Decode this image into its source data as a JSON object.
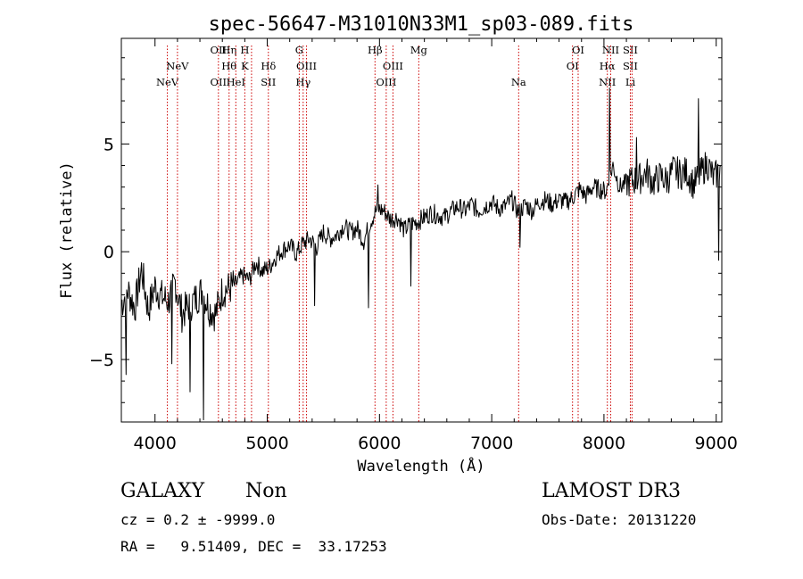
{
  "chart_data": {
    "type": "line",
    "title": "spec-56647-M31010N33M1_sp03-089.fits",
    "xlabel": "Wavelength (Å)",
    "ylabel": "Flux (relative)",
    "xlim": [
      3700,
      9050
    ],
    "ylim": [
      -7.9,
      9.9
    ],
    "xticks": [
      4000,
      5000,
      6000,
      7000,
      8000,
      9000
    ],
    "yticks": [
      -5,
      0,
      5
    ],
    "grid": false,
    "line_color": "#000000",
    "marker_color": "#cc0000",
    "series": [
      {
        "name": "flux",
        "x": [
          3700,
          3760,
          3820,
          3880,
          3940,
          4000,
          4060,
          4120,
          4180,
          4240,
          4300,
          4360,
          4420,
          4480,
          4540,
          4600,
          4660,
          4720,
          4780,
          4840,
          4900,
          4960,
          5020,
          5080,
          5140,
          5200,
          5260,
          5320,
          5380,
          5440,
          5500,
          5560,
          5620,
          5680,
          5740,
          5800,
          5860,
          5920,
          5980,
          6040,
          6100,
          6160,
          6220,
          6280,
          6340,
          6400,
          6460,
          6520,
          6580,
          6640,
          6700,
          6760,
          6820,
          6880,
          6940,
          7000,
          7060,
          7120,
          7180,
          7240,
          7300,
          7360,
          7420,
          7480,
          7540,
          7600,
          7660,
          7720,
          7780,
          7840,
          7900,
          7960,
          8020,
          8080,
          8140,
          8200,
          8260,
          8320,
          8380,
          8440,
          8500,
          8560,
          8620,
          8680,
          8740,
          8800,
          8860,
          8920,
          8980,
          9040
        ],
        "y": [
          -2.4,
          -1.8,
          -2.6,
          -0.8,
          -2.7,
          -1.6,
          -2.1,
          -2.3,
          -1.4,
          -2.9,
          -2.5,
          -2.2,
          -1.8,
          -2.6,
          -2.9,
          -1.8,
          -1.7,
          -1.5,
          -1.1,
          -1.3,
          -0.5,
          -0.9,
          -0.7,
          -0.2,
          0.1,
          0.3,
          -0.1,
          0.4,
          0.6,
          0.2,
          0.9,
          0.6,
          0.8,
          1.2,
          0.9,
          1.1,
          0.5,
          1.4,
          2.0,
          1.9,
          1.5,
          1.6,
          1.0,
          1.3,
          1.4,
          1.6,
          1.8,
          1.7,
          1.6,
          1.9,
          2.1,
          1.9,
          2.2,
          1.9,
          2.1,
          2.3,
          2.0,
          2.1,
          2.4,
          1.8,
          2.2,
          1.9,
          2.3,
          2.4,
          2.2,
          2.4,
          2.3,
          2.5,
          2.9,
          2.6,
          3.0,
          2.9,
          2.8,
          4.0,
          3.0,
          3.2,
          3.3,
          3.4,
          3.7,
          3.2,
          3.5,
          3.3,
          3.8,
          3.6,
          3.7,
          3.1,
          3.6,
          4.1,
          3.4,
          3.9
        ]
      }
    ],
    "spikes": [
      {
        "x": 3740,
        "y": -5.7
      },
      {
        "x": 4150,
        "y": -5.2
      },
      {
        "x": 4310,
        "y": -6.5
      },
      {
        "x": 4430,
        "y": -7.8
      },
      {
        "x": 5420,
        "y": -2.5
      },
      {
        "x": 5900,
        "y": -2.6
      },
      {
        "x": 5985,
        "y": 3.1
      },
      {
        "x": 6280,
        "y": -1.6
      },
      {
        "x": 7250,
        "y": 0.2
      },
      {
        "x": 8050,
        "y": 7.6
      },
      {
        "x": 8290,
        "y": 5.3
      },
      {
        "x": 8840,
        "y": 7.1
      },
      {
        "x": 9020,
        "y": -0.4
      }
    ],
    "emission_lines": [
      {
        "x": 4110,
        "labels": [
          {
            "text": "NeV",
            "row": 2
          }
        ]
      },
      {
        "x": 4200,
        "labels": [
          {
            "text": "NeV",
            "row": 1
          }
        ]
      },
      {
        "x": 4565,
        "labels": [
          {
            "text": "OII",
            "row": 0
          },
          {
            "text": "OII",
            "row": 2
          }
        ]
      },
      {
        "x": 4660,
        "labels": [
          {
            "text": "Hη",
            "row": 0
          },
          {
            "text": "Hθ",
            "row": 1
          }
        ]
      },
      {
        "x": 4720,
        "labels": [
          {
            "text": "HeI",
            "row": 2
          }
        ]
      },
      {
        "x": 4800,
        "labels": [
          {
            "text": "H",
            "row": 0
          },
          {
            "text": "K",
            "row": 1
          }
        ]
      },
      {
        "x": 4860,
        "labels": []
      },
      {
        "x": 5010,
        "labels": [
          {
            "text": "Hδ",
            "row": 1
          },
          {
            "text": "SII",
            "row": 2
          }
        ]
      },
      {
        "x": 5285,
        "labels": [
          {
            "text": "G",
            "row": 0
          }
        ]
      },
      {
        "x": 5320,
        "labels": [
          {
            "text": "Hγ",
            "row": 2
          }
        ]
      },
      {
        "x": 5350,
        "labels": [
          {
            "text": "OIII",
            "row": 1
          }
        ]
      },
      {
        "x": 5960,
        "labels": [
          {
            "text": "Hβ",
            "row": 0
          }
        ]
      },
      {
        "x": 6060,
        "labels": [
          {
            "text": "OIII",
            "row": 2
          }
        ]
      },
      {
        "x": 6120,
        "labels": [
          {
            "text": "OIII",
            "row": 1
          }
        ]
      },
      {
        "x": 6350,
        "labels": [
          {
            "text": "Mg",
            "row": 0
          }
        ]
      },
      {
        "x": 7240,
        "labels": [
          {
            "text": "Na",
            "row": 2
          }
        ]
      },
      {
        "x": 7720,
        "labels": [
          {
            "text": "OI",
            "row": 1
          }
        ]
      },
      {
        "x": 7770,
        "labels": [
          {
            "text": "OI",
            "row": 0
          }
        ]
      },
      {
        "x": 8030,
        "labels": [
          {
            "text": "Hα",
            "row": 1
          },
          {
            "text": "NII",
            "row": 2
          }
        ]
      },
      {
        "x": 8060,
        "labels": [
          {
            "text": "NII",
            "row": 0
          }
        ]
      },
      {
        "x": 8235,
        "labels": [
          {
            "text": "SII",
            "row": 0
          },
          {
            "text": "SII",
            "row": 1
          },
          {
            "text": "Li",
            "row": 2
          }
        ]
      },
      {
        "x": 8250,
        "labels": []
      }
    ]
  },
  "info": {
    "class": "GALAXY",
    "subclass": "Non",
    "survey": "LAMOST DR3",
    "redshift": "cz = 0.2 ± -9999.0",
    "obs_date": "Obs-Date: 20131220",
    "coords": "RA =   9.51409, DEC =  33.17253"
  }
}
